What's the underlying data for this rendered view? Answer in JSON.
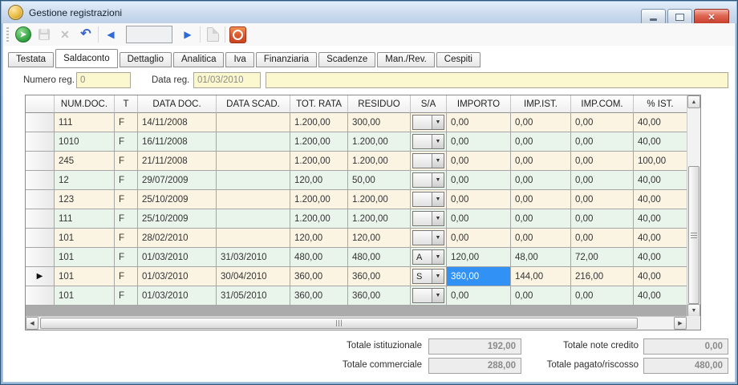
{
  "window": {
    "title": "Gestione registrazioni"
  },
  "toolbar": {
    "record_box_value": "",
    "buttons": [
      {
        "name": "execute",
        "icon": "green-circle-arrow-icon",
        "enabled": true
      },
      {
        "name": "save",
        "icon": "floppy-disk-icon",
        "enabled": false
      },
      {
        "name": "delete",
        "icon": "x-icon",
        "enabled": false
      },
      {
        "name": "undo",
        "icon": "undo-arrow-icon",
        "enabled": true
      },
      {
        "name": "previous-record",
        "icon": "left-arrow-icon",
        "enabled": true
      },
      {
        "name": "next-record",
        "icon": "right-arrow-icon",
        "enabled": true
      },
      {
        "name": "document",
        "icon": "document-icon",
        "enabled": false
      },
      {
        "name": "exit",
        "icon": "power-ring-icon",
        "enabled": true
      }
    ]
  },
  "tabs": {
    "labels": [
      "Testata",
      "Saldaconto",
      "Dettaglio",
      "Analitica",
      "Iva",
      "Finanziaria",
      "Scadenze",
      "Man./Rev.",
      "Cespiti"
    ],
    "active": "Saldaconto"
  },
  "form": {
    "numero_reg": {
      "label": "Numero reg.",
      "value": "0"
    },
    "data_reg": {
      "label": "Data reg.",
      "value": "01/03/2010"
    },
    "note": {
      "value": ""
    }
  },
  "grid": {
    "columns": [
      "NUM.DOC.",
      "T",
      "DATA DOC.",
      "DATA SCAD.",
      "TOT. RATA",
      "RESIDUO",
      "S/A",
      "IMPORTO",
      "IMP.IST.",
      "IMP.COM.",
      "% IST."
    ],
    "rows": [
      [
        "111",
        "F",
        "14/11/2008",
        "",
        "1.200,00",
        "300,00",
        "",
        "0,00",
        "0,00",
        "0,00",
        "40,00"
      ],
      [
        "1010",
        "F",
        "16/11/2008",
        "",
        "1.200,00",
        "1.200,00",
        "",
        "0,00",
        "0,00",
        "0,00",
        "40,00"
      ],
      [
        "245",
        "F",
        "21/11/2008",
        "",
        "1.200,00",
        "1.200,00",
        "",
        "0,00",
        "0,00",
        "0,00",
        "100,00"
      ],
      [
        "12",
        "F",
        "29/07/2009",
        "",
        "120,00",
        "50,00",
        "",
        "0,00",
        "0,00",
        "0,00",
        "40,00"
      ],
      [
        "123",
        "F",
        "25/10/2009",
        "",
        "1.200,00",
        "1.200,00",
        "",
        "0,00",
        "0,00",
        "0,00",
        "40,00"
      ],
      [
        "111",
        "F",
        "25/10/2009",
        "",
        "1.200,00",
        "1.200,00",
        "",
        "0,00",
        "0,00",
        "0,00",
        "40,00"
      ],
      [
        "101",
        "F",
        "28/02/2010",
        "",
        "120,00",
        "120,00",
        "",
        "0,00",
        "0,00",
        "0,00",
        "40,00"
      ],
      [
        "101",
        "F",
        "01/03/2010",
        "31/03/2010",
        "480,00",
        "480,00",
        "A",
        "120,00",
        "48,00",
        "72,00",
        "40,00"
      ],
      [
        "101",
        "F",
        "01/03/2010",
        "30/04/2010",
        "360,00",
        "360,00",
        "S",
        "360,00",
        "144,00",
        "216,00",
        "40,00"
      ],
      [
        "101",
        "F",
        "01/03/2010",
        "31/05/2010",
        "360,00",
        "360,00",
        "",
        "0,00",
        "0,00",
        "0,00",
        "40,00"
      ]
    ],
    "active_row_index": 8,
    "selected_cell": {
      "row": 8,
      "col": 7
    }
  },
  "totals": {
    "istituzionale": {
      "label": "Totale istituzionale",
      "value": "192,00"
    },
    "commerciale": {
      "label": "Totale commerciale",
      "value": "288,00"
    },
    "note_credito": {
      "label": "Totale note credito",
      "value": "0,00"
    },
    "pagato_riscosso": {
      "label": "Totale pagato/riscosso",
      "value": "480,00"
    }
  },
  "colors": {
    "selection": "#3191f5",
    "row_odd": "#fbf4e2",
    "row_even": "#e9f5ea",
    "field_yellow": "#fbf8cf",
    "close_red": "#c43b28"
  }
}
